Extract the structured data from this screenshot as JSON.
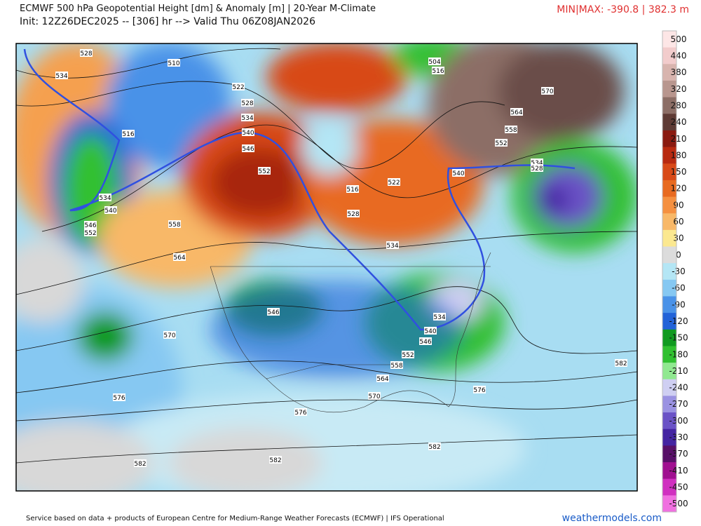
{
  "header": {
    "title": "ECMWF 500 hPa Geopotential Height [dm] & Anomaly [m] | 20-Year M-Climate",
    "subtitle": "Init: 12Z26DEC2025 -- [306] hr --> Valid Thu 06Z08JAN2026",
    "minmax": "MIN|MAX: -390.8 | 382.3 m"
  },
  "colorbar": {
    "labels": [
      500,
      440,
      380,
      320,
      280,
      240,
      210,
      180,
      150,
      120,
      90,
      60,
      30,
      0,
      -30,
      -60,
      -90,
      -120,
      -150,
      -180,
      -210,
      -240,
      -270,
      -300,
      -330,
      -370,
      -410,
      -450,
      -500
    ],
    "colors": [
      "#fde6e6",
      "#f2cccc",
      "#d8b4ae",
      "#b8968e",
      "#8c6e66",
      "#5e3b35",
      "#8a1a10",
      "#b82a10",
      "#d84a18",
      "#e86a20",
      "#f59040",
      "#f8b868",
      "#fbe890",
      "#dcdcdc",
      "#b4e6f5",
      "#86c8f2",
      "#4a92e8",
      "#2262d8",
      "#109a20",
      "#30c030",
      "#90e890",
      "#cfcff2",
      "#9a92e2",
      "#6a52c6",
      "#4424a2",
      "#581068",
      "#a01090",
      "#d030c0",
      "#f070e0"
    ]
  },
  "contour_labels": [
    528,
    534,
    510,
    516,
    522,
    528,
    534,
    540,
    546,
    552,
    516,
    528,
    534,
    540,
    546,
    552,
    558,
    564,
    570,
    576,
    582,
    576,
    582,
    546,
    534,
    540,
    546,
    552,
    558,
    564,
    570,
    576,
    582,
    582,
    522,
    534,
    540,
    552,
    558,
    564,
    570,
    534,
    528,
    504,
    516
  ],
  "footer": "Service based on data + products of European Centre for Medium-Range Weather Forecasts (ECMWF) | IFS Operational",
  "site": "weathermodels.com"
}
